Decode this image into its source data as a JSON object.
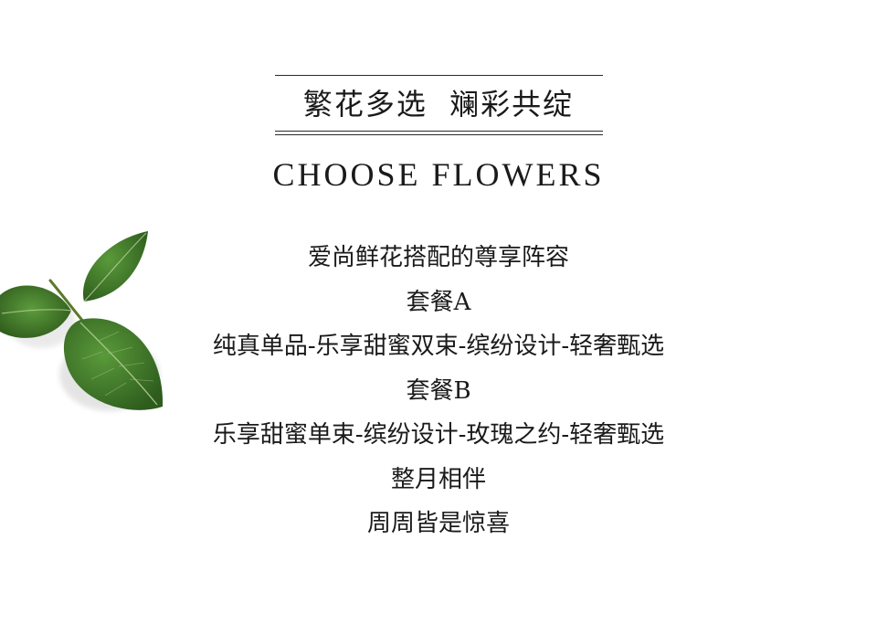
{
  "header": {
    "headline": "繁花多选  斓彩共绽",
    "subtitle": "CHOOSE FLOWERS"
  },
  "body": {
    "lines": [
      "爱尚鲜花搭配的尊享阵容",
      "套餐A",
      "纯真单品-乐享甜蜜双束-缤纷设计-轻奢甄选",
      "套餐B",
      "乐享甜蜜单束-缤纷设计-玫瑰之约-轻奢甄选",
      "整月相伴",
      "周周皆是惊喜"
    ]
  },
  "decoration": {
    "icon": "green-leaves-icon",
    "leaf_color": "#3f7a2a",
    "leaf_dark": "#2d5c1d",
    "vein_color": "#b9cf9a"
  }
}
